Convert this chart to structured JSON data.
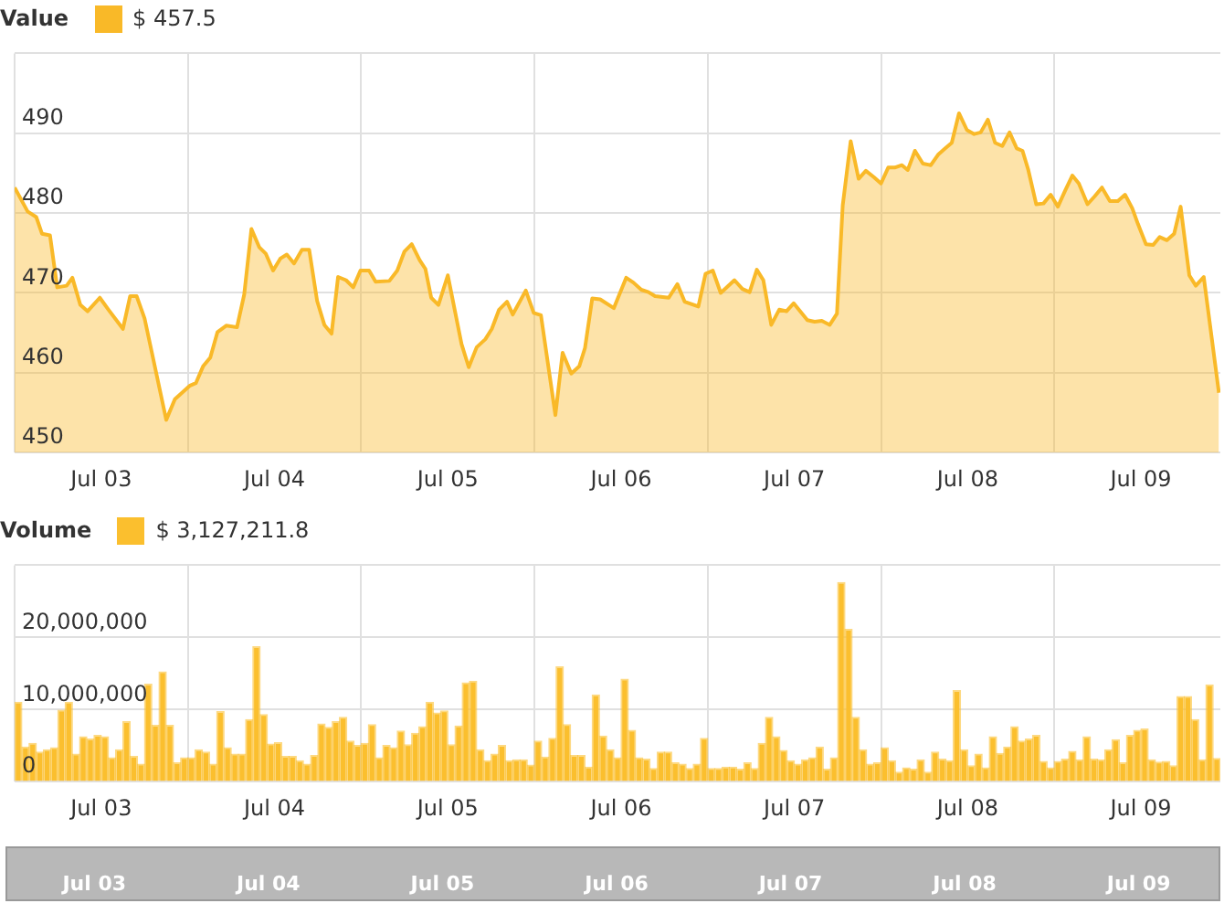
{
  "chart_data": [
    {
      "type": "area",
      "title": "Value",
      "legend": "top left",
      "grid": true,
      "xlim": [
        "--07-03T00:00",
        "--07-09T23:00"
      ],
      "ylim": [
        450,
        500
      ],
      "xticks": [
        {
          "value": "--07-03T00:00",
          "label": null
        },
        {
          "value": "--07-03T12:00",
          "label": "Jul 03"
        },
        {
          "value": "--07-04T00:00",
          "label": null
        },
        {
          "value": "--07-04T12:00",
          "label": "Jul 04"
        },
        {
          "value": "--07-05T00:00",
          "label": null
        },
        {
          "value": "--07-05T12:00",
          "label": "Jul 05"
        },
        {
          "value": "--07-06T00:00",
          "label": null
        },
        {
          "value": "--07-06T12:00",
          "label": "Jul 06"
        },
        {
          "value": "--07-07T00:00",
          "label": null
        },
        {
          "value": "--07-07T12:00",
          "label": "Jul 07"
        },
        {
          "value": "--07-08T00:00",
          "label": null
        },
        {
          "value": "--07-08T12:00",
          "label": "Jul 08"
        },
        {
          "value": "--07-09T00:00",
          "label": null
        },
        {
          "value": "--07-09T12:00",
          "label": "Jul 09"
        }
      ],
      "yticks": [
        450,
        460,
        470,
        480,
        490,
        {
          "value": 500,
          "label": null
        }
      ],
      "series": [
        {
          "name": "$ 457.5",
          "color": "#f9b928",
          "x": [
            "--07-03T00:00",
            "--07-03T01:48",
            "--07-03T03:00",
            "--07-03T03:48",
            "--07-03T04:54",
            "--07-03T05:54",
            "--07-03T07:12",
            "--07-03T08:00",
            "--07-03T09:06",
            "--07-03T10:06",
            "--07-03T11:48",
            "--07-03T13:00",
            "--07-03T15:00",
            "--07-03T16:00",
            "--07-03T16:54",
            "--07-03T18:00",
            "--07-03T21:00",
            "--07-03T22:12",
            "--07-04T00:18",
            "--07-04T01:06",
            "--07-04T02:06",
            "--07-04T03:06",
            "--07-04T04:06",
            "--07-04T05:18",
            "--07-04T06:48",
            "--07-04T07:48",
            "--07-04T08:48",
            "--07-04T09:54",
            "--07-04T10:48",
            "--07-04T11:48",
            "--07-04T12:48",
            "--07-04T13:42",
            "--07-04T14:42",
            "--07-04T15:48",
            "--07-04T16:48",
            "--07-04T17:54",
            "--07-04T18:54",
            "--07-04T19:54",
            "--07-04T20:48",
            "--07-04T21:54",
            "--07-04T22:54",
            "--07-04T23:54",
            "--07-05T01:06",
            "--07-05T02:00",
            "--07-05T03:54",
            "--07-05T05:00",
            "--07-05T06:00",
            "--07-05T07:00",
            "--07-05T08:06",
            "--07-05T08:54",
            "--07-05T09:42",
            "--07-05T10:42",
            "--07-05T12:00",
            "--07-05T13:54",
            "--07-05T14:54",
            "--07-05T16:00",
            "--07-05T17:12",
            "--07-05T18:06",
            "--07-05T19:06",
            "--07-05T20:12",
            "--07-05T21:00",
            "--07-05T22:48",
            "--07-05T23:54",
            "--07-06T00:54",
            "--07-06T02:54",
            "--07-06T03:54",
            "--07-06T05:06",
            "--07-06T06:12",
            "--07-06T07:00",
            "--07-06T08:00",
            "--07-06T09:06",
            "--07-06T11:00",
            "--07-06T12:42",
            "--07-06T13:42",
            "--07-06T14:48",
            "--07-06T15:48",
            "--07-06T16:42",
            "--07-06T18:36",
            "--07-06T19:48",
            "--07-06T20:48",
            "--07-06T22:42",
            "--07-06T23:42",
            "--07-07T00:42",
            "--07-07T01:48",
            "--07-07T03:42",
            "--07-07T04:48",
            "--07-07T05:48",
            "--07-07T06:48",
            "--07-07T07:42",
            "--07-07T08:48",
            "--07-07T09:54",
            "--07-07T10:54",
            "--07-07T11:54",
            "--07-07T13:48",
            "--07-07T14:48",
            "--07-07T15:48",
            "--07-07T16:54",
            "--07-07T17:54",
            "--07-07T18:42",
            "--07-07T19:48",
            "--07-07T20:54",
            "--07-07T21:54",
            "--07-07T23:00",
            "--07-08T00:00",
            "--07-08T01:00",
            "--07-08T01:54",
            "--07-08T02:54",
            "--07-08T03:42",
            "--07-08T04:42",
            "--07-08T05:48",
            "--07-08T06:54",
            "--07-08T07:54",
            "--07-08T08:54",
            "--07-08T09:48",
            "--07-08T10:48",
            "--07-08T11:54",
            "--07-08T12:54",
            "--07-08T13:48",
            "--07-08T14:48",
            "--07-08T15:48",
            "--07-08T16:48",
            "--07-08T17:48",
            "--07-08T18:48",
            "--07-08T19:36",
            "--07-08T20:24",
            "--07-08T21:30",
            "--07-08T22:30",
            "--07-08T23:30",
            "--07-09T00:30",
            "--07-09T01:30",
            "--07-09T02:30",
            "--07-09T03:24",
            "--07-09T04:36",
            "--07-09T05:36",
            "--07-09T06:36",
            "--07-09T07:42",
            "--07-09T08:48",
            "--07-09T09:48",
            "--07-09T10:48",
            "--07-09T11:36",
            "--07-09T12:42",
            "--07-09T13:42",
            "--07-09T14:36",
            "--07-09T15:36",
            "--07-09T16:36",
            "--07-09T17:30",
            "--07-09T18:42",
            "--07-09T19:36",
            "--07-09T20:42",
            "--07-09T22:48"
          ],
          "values": [
            483.2,
            480.2,
            479.5,
            477.4,
            477.2,
            470.7,
            470.9,
            471.9,
            468.5,
            467.7,
            469.4,
            467.9,
            465.5,
            469.6,
            469.6,
            466.8,
            454.1,
            456.7,
            458.4,
            458.7,
            460.8,
            461.9,
            465.1,
            465.9,
            465.7,
            469.8,
            478.0,
            475.7,
            474.9,
            472.8,
            474.3,
            474.8,
            473.7,
            475.4,
            475.4,
            469.0,
            466.0,
            464.9,
            472.0,
            471.6,
            470.7,
            472.8,
            472.8,
            471.4,
            471.5,
            472.8,
            475.2,
            476.1,
            474.1,
            473.0,
            469.4,
            468.5,
            472.2,
            463.6,
            460.7,
            463.2,
            464.2,
            465.5,
            467.9,
            468.9,
            467.3,
            470.3,
            467.5,
            467.2,
            454.7,
            462.5,
            459.9,
            460.8,
            463.1,
            469.3,
            469.2,
            468.1,
            471.9,
            471.3,
            470.4,
            470.1,
            469.6,
            469.4,
            471.1,
            468.9,
            468.3,
            472.4,
            472.8,
            470.0,
            471.6,
            470.5,
            470.1,
            472.9,
            471.6,
            466.0,
            467.9,
            467.7,
            468.7,
            466.6,
            466.4,
            466.5,
            466.0,
            467.4,
            481.0,
            489.0,
            484.3,
            485.3,
            484.5,
            483.7,
            485.7,
            485.7,
            486.0,
            485.4,
            487.8,
            486.2,
            486.0,
            487.3,
            488.1,
            488.8,
            492.5,
            490.4,
            489.9,
            490.1,
            491.7,
            488.8,
            488.4,
            490.1,
            488.1,
            487.8,
            485.4,
            481.1,
            481.2,
            482.3,
            480.8,
            482.8,
            484.7,
            483.7,
            481.1,
            482.1,
            483.2,
            481.5,
            481.5,
            482.3,
            480.6,
            478.6,
            476.1,
            476.0,
            477.0,
            476.6,
            477.4,
            480.8,
            472.2,
            470.9,
            472.0,
            457.5
          ]
        }
      ]
    },
    {
      "type": "bar",
      "title": "Volume",
      "legend": "top left",
      "grid": true,
      "xlim": [
        "--07-03T00:00",
        "--07-09T23:00"
      ],
      "ylim": [
        0,
        30000000
      ],
      "xticks": [
        {
          "value": "--07-03T00:00",
          "label": null
        },
        {
          "value": "--07-03T12:00",
          "label": "Jul 03"
        },
        {
          "value": "--07-04T00:00",
          "label": null
        },
        {
          "value": "--07-04T12:00",
          "label": "Jul 04"
        },
        {
          "value": "--07-05T00:00",
          "label": null
        },
        {
          "value": "--07-05T12:00",
          "label": "Jul 05"
        },
        {
          "value": "--07-06T00:00",
          "label": null
        },
        {
          "value": "--07-06T12:00",
          "label": "Jul 06"
        },
        {
          "value": "--07-07T00:00",
          "label": null
        },
        {
          "value": "--07-07T12:00",
          "label": "Jul 07"
        },
        {
          "value": "--07-08T00:00",
          "label": null
        },
        {
          "value": "--07-08T12:00",
          "label": "Jul 08"
        },
        {
          "value": "--07-09T00:00",
          "label": null
        },
        {
          "value": "--07-09T12:00",
          "label": "Jul 09"
        }
      ],
      "yticks": [
        0,
        {
          "value": 10000000,
          "label": "10,000,000"
        },
        {
          "value": 20000000,
          "label": "20,000,000"
        },
        {
          "value": 30000000,
          "label": null
        }
      ],
      "series": [
        {
          "name": "$ 3,127,211.8",
          "color": "#fbbf2e",
          "x": [
            "--07-03T00:30",
            "--07-03T01:30",
            "--07-03T02:30",
            "--07-03T03:30",
            "--07-03T04:30",
            "--07-03T05:30",
            "--07-03T06:30",
            "--07-03T07:30",
            "--07-03T08:30",
            "--07-03T09:30",
            "--07-03T10:30",
            "--07-03T11:30",
            "--07-03T12:30",
            "--07-03T13:30",
            "--07-03T14:30",
            "--07-03T15:30",
            "--07-03T16:30",
            "--07-03T17:30",
            "--07-03T18:30",
            "--07-03T19:30",
            "--07-03T20:30",
            "--07-03T21:30",
            "--07-03T22:30",
            "--07-03T23:30",
            "--07-04T00:30",
            "--07-04T01:30",
            "--07-04T02:30",
            "--07-04T03:30",
            "--07-04T04:30",
            "--07-04T05:30",
            "--07-04T06:30",
            "--07-04T07:30",
            "--07-04T08:30",
            "--07-04T09:30",
            "--07-04T10:30",
            "--07-04T11:30",
            "--07-04T12:30",
            "--07-04T13:30",
            "--07-04T14:30",
            "--07-04T15:30",
            "--07-04T16:30",
            "--07-04T17:30",
            "--07-04T18:30",
            "--07-04T19:30",
            "--07-04T20:30",
            "--07-04T21:30",
            "--07-04T22:30",
            "--07-04T23:30",
            "--07-05T00:30",
            "--07-05T01:30",
            "--07-05T02:30",
            "--07-05T03:30",
            "--07-05T04:30",
            "--07-05T05:30",
            "--07-05T06:30",
            "--07-05T07:30",
            "--07-05T08:30",
            "--07-05T09:30",
            "--07-05T10:30",
            "--07-05T11:30",
            "--07-05T12:30",
            "--07-05T13:30",
            "--07-05T14:30",
            "--07-05T15:30",
            "--07-05T16:30",
            "--07-05T17:30",
            "--07-05T18:30",
            "--07-05T19:30",
            "--07-05T20:30",
            "--07-05T21:30",
            "--07-05T22:30",
            "--07-05T23:30",
            "--07-06T00:30",
            "--07-06T01:30",
            "--07-06T02:30",
            "--07-06T03:30",
            "--07-06T04:30",
            "--07-06T05:30",
            "--07-06T06:30",
            "--07-06T07:30",
            "--07-06T08:30",
            "--07-06T09:30",
            "--07-06T10:30",
            "--07-06T11:30",
            "--07-06T12:30",
            "--07-06T13:30",
            "--07-06T14:30",
            "--07-06T15:30",
            "--07-06T16:30",
            "--07-06T17:30",
            "--07-06T18:30",
            "--07-06T19:30",
            "--07-06T20:30",
            "--07-06T21:30",
            "--07-06T22:30",
            "--07-06T23:30",
            "--07-07T00:30",
            "--07-07T01:30",
            "--07-07T02:30",
            "--07-07T03:30",
            "--07-07T04:30",
            "--07-07T05:30",
            "--07-07T06:30",
            "--07-07T07:30",
            "--07-07T08:30",
            "--07-07T09:30",
            "--07-07T10:30",
            "--07-07T11:30",
            "--07-07T12:30",
            "--07-07T13:30",
            "--07-07T14:30",
            "--07-07T15:30",
            "--07-07T16:30",
            "--07-07T17:30",
            "--07-07T18:30",
            "--07-07T19:30",
            "--07-07T20:30",
            "--07-07T21:30",
            "--07-07T22:30",
            "--07-07T23:30",
            "--07-08T00:30",
            "--07-08T01:30",
            "--07-08T02:30",
            "--07-08T03:30",
            "--07-08T04:30",
            "--07-08T05:30",
            "--07-08T06:30",
            "--07-08T07:30",
            "--07-08T08:30",
            "--07-08T09:30",
            "--07-08T10:30",
            "--07-08T11:30",
            "--07-08T12:30",
            "--07-08T13:30",
            "--07-08T14:30",
            "--07-08T15:30",
            "--07-08T16:30",
            "--07-08T17:30",
            "--07-08T18:30",
            "--07-08T19:30",
            "--07-08T20:30",
            "--07-08T21:30",
            "--07-08T22:30",
            "--07-08T23:30",
            "--07-09T00:30",
            "--07-09T01:30",
            "--07-09T02:30",
            "--07-09T03:30",
            "--07-09T04:30",
            "--07-09T05:30",
            "--07-09T06:30",
            "--07-09T07:30",
            "--07-09T08:30",
            "--07-09T09:30",
            "--07-09T10:30",
            "--07-09T11:30",
            "--07-09T12:30",
            "--07-09T13:30",
            "--07-09T14:30",
            "--07-09T15:30",
            "--07-09T16:30",
            "--07-09T17:30",
            "--07-09T18:30",
            "--07-09T19:30",
            "--07-09T20:30",
            "--07-09T21:30",
            "--07-09T22:30"
          ],
          "values": [
            11000000,
            4800000,
            5300000,
            4100000,
            4400000,
            4700000,
            9900000,
            11000000,
            3800000,
            6200000,
            5900000,
            6400000,
            6200000,
            3300000,
            4400000,
            8300000,
            3500000,
            2400000,
            13500000,
            7800000,
            15200000,
            7800000,
            2600000,
            3300000,
            3300000,
            4400000,
            4100000,
            2400000,
            9700000,
            4700000,
            3800000,
            3800000,
            8600000,
            18700000,
            9300000,
            5200000,
            5400000,
            3500000,
            3500000,
            2900000,
            2400000,
            3600000,
            8000000,
            7500000,
            8300000,
            8900000,
            5600000,
            5000000,
            5300000,
            7900000,
            3300000,
            5000000,
            4700000,
            7000000,
            5100000,
            6700000,
            7600000,
            11000000,
            9500000,
            9800000,
            5100000,
            7700000,
            13700000,
            13900000,
            4400000,
            2900000,
            3800000,
            5000000,
            2900000,
            3000000,
            3000000,
            2300000,
            5600000,
            3400000,
            6000000,
            15900000,
            7900000,
            3600000,
            3600000,
            2000000,
            12000000,
            6300000,
            4400000,
            3300000,
            14200000,
            7100000,
            3300000,
            3100000,
            1800000,
            4100000,
            4100000,
            2600000,
            2400000,
            1800000,
            2400000,
            6000000,
            1800000,
            1800000,
            2000000,
            2000000,
            1700000,
            2600000,
            1800000,
            5300000,
            8900000,
            6200000,
            4300000,
            2900000,
            2400000,
            3000000,
            3300000,
            4800000,
            1700000,
            3300000,
            27600000,
            21100000,
            8900000,
            4400000,
            2400000,
            2600000,
            4700000,
            2900000,
            1300000,
            1900000,
            1700000,
            3000000,
            1300000,
            4100000,
            3100000,
            2900000,
            12600000,
            4400000,
            2200000,
            3800000,
            1900000,
            6200000,
            3900000,
            4800000,
            7600000,
            5600000,
            5900000,
            6400000,
            2800000,
            1900000,
            2800000,
            3100000,
            4200000,
            3000000,
            6200000,
            3100000,
            3000000,
            4400000,
            5800000,
            2600000,
            6400000,
            7100000,
            7300000,
            3000000,
            2700000,
            2800000,
            2200000,
            11800000,
            11800000,
            8600000,
            3000000,
            13400000,
            3200000
          ]
        }
      ]
    }
  ]
}
